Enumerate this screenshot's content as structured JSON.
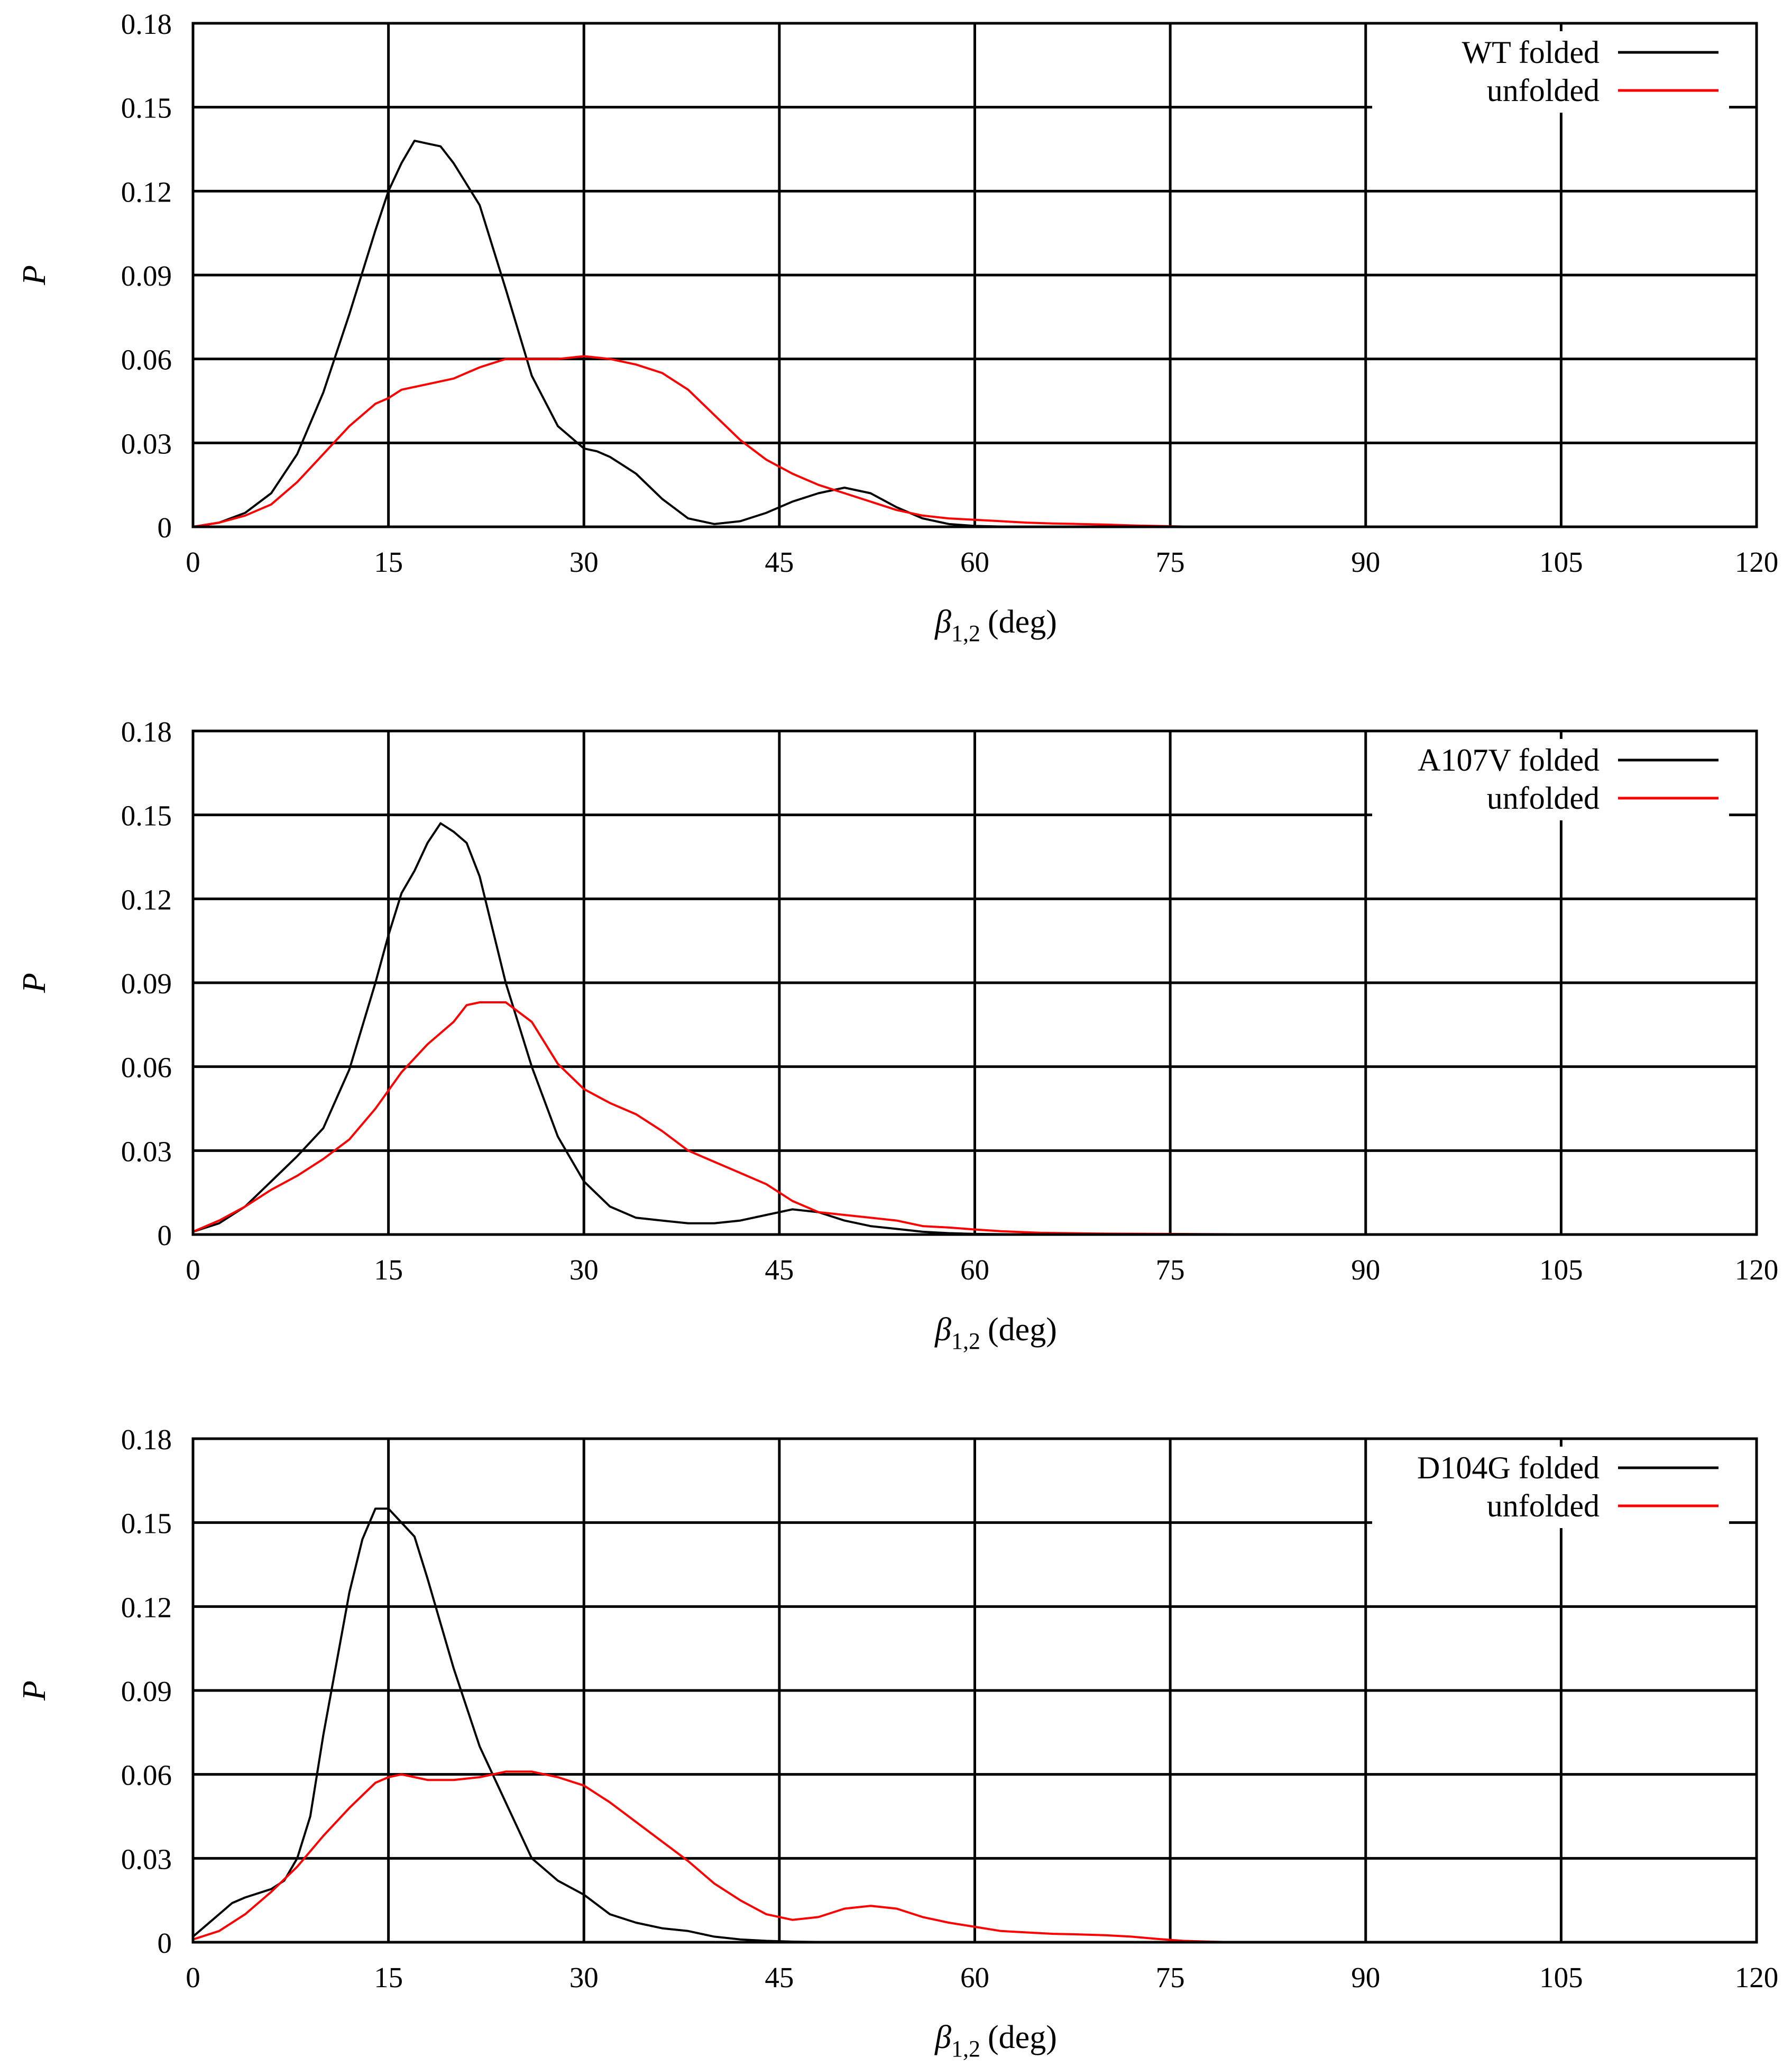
{
  "chart_data": [
    {
      "type": "line",
      "title": "",
      "xlabel_symbol": "β",
      "xlabel_subscript": "1,2",
      "xlabel_unit": "(deg)",
      "ylabel": "P",
      "xlim": [
        0,
        120
      ],
      "ylim": [
        0,
        0.18
      ],
      "xticks": [
        "0",
        "15",
        "30",
        "45",
        "60",
        "75",
        "90",
        "105",
        "120"
      ],
      "yticks": [
        "0",
        "0.03",
        "0.06",
        "0.09",
        "0.12",
        "0.15",
        "0.18"
      ],
      "grid": true,
      "legend_position": "top-right",
      "series": [
        {
          "name": "WT folded",
          "color": "#000000",
          "x": [
            0,
            2,
            4,
            6,
            8,
            10,
            12,
            14,
            15,
            16,
            17,
            18,
            19,
            20,
            22,
            24,
            26,
            28,
            30,
            31,
            32,
            33,
            34,
            36,
            38,
            40,
            42,
            44,
            46,
            48,
            50,
            52,
            54,
            56,
            58,
            60,
            62,
            65
          ],
          "y": [
            0,
            0.0015,
            0.005,
            0.012,
            0.026,
            0.048,
            0.076,
            0.106,
            0.12,
            0.13,
            0.138,
            0.137,
            0.136,
            0.13,
            0.115,
            0.085,
            0.054,
            0.036,
            0.028,
            0.027,
            0.025,
            0.022,
            0.019,
            0.01,
            0.003,
            0.001,
            0.002,
            0.005,
            0.009,
            0.012,
            0.014,
            0.012,
            0.007,
            0.003,
            0.001,
            0.0003,
            0.0001,
            0
          ]
        },
        {
          "name": "unfolded",
          "color": "#ff0000",
          "x": [
            0,
            2,
            4,
            6,
            8,
            10,
            12,
            14,
            15,
            16,
            18,
            20,
            22,
            24,
            26,
            28,
            30,
            32,
            34,
            36,
            38,
            40,
            42,
            44,
            46,
            48,
            50,
            52,
            54,
            56,
            58,
            60,
            62,
            64,
            66,
            68,
            70,
            72,
            74,
            76,
            80,
            85,
            90,
            100,
            110,
            120
          ],
          "y": [
            0,
            0.0015,
            0.004,
            0.008,
            0.016,
            0.026,
            0.036,
            0.044,
            0.046,
            0.049,
            0.051,
            0.053,
            0.057,
            0.06,
            0.06,
            0.06,
            0.061,
            0.06,
            0.058,
            0.055,
            0.049,
            0.04,
            0.031,
            0.024,
            0.019,
            0.015,
            0.012,
            0.009,
            0.006,
            0.004,
            0.003,
            0.0025,
            0.002,
            0.0015,
            0.0012,
            0.001,
            0.0008,
            0.0005,
            0.0003,
            0.0001,
            5e-05,
            0,
            0,
            0,
            0,
            0
          ]
        }
      ]
    },
    {
      "type": "line",
      "title": "",
      "xlabel_symbol": "β",
      "xlabel_subscript": "1,2",
      "xlabel_unit": "(deg)",
      "ylabel": "P",
      "xlim": [
        0,
        120
      ],
      "ylim": [
        0,
        0.18
      ],
      "xticks": [
        "0",
        "15",
        "30",
        "45",
        "60",
        "75",
        "90",
        "105",
        "120"
      ],
      "yticks": [
        "0",
        "0.03",
        "0.06",
        "0.09",
        "0.12",
        "0.15",
        "0.18"
      ],
      "grid": true,
      "legend_position": "top-right",
      "series": [
        {
          "name": "A107V folded",
          "color": "#000000",
          "x": [
            0,
            2,
            4,
            6,
            8,
            10,
            12,
            14,
            15,
            16,
            17,
            18,
            19,
            20,
            21,
            22,
            24,
            26,
            28,
            30,
            32,
            34,
            36,
            38,
            40,
            42,
            44,
            46,
            48,
            50,
            52,
            54,
            56,
            58,
            60,
            65
          ],
          "y": [
            0.001,
            0.004,
            0.01,
            0.019,
            0.028,
            0.038,
            0.059,
            0.09,
            0.107,
            0.122,
            0.13,
            0.14,
            0.147,
            0.144,
            0.14,
            0.128,
            0.09,
            0.06,
            0.035,
            0.019,
            0.01,
            0.006,
            0.005,
            0.004,
            0.004,
            0.005,
            0.007,
            0.009,
            0.008,
            0.005,
            0.003,
            0.002,
            0.001,
            0.0005,
            0.0002,
            0
          ]
        },
        {
          "name": "unfolded",
          "color": "#ff0000",
          "x": [
            0,
            2,
            4,
            6,
            8,
            10,
            12,
            14,
            16,
            18,
            20,
            21,
            22,
            24,
            26,
            28,
            30,
            32,
            34,
            36,
            38,
            40,
            42,
            44,
            46,
            48,
            50,
            52,
            54,
            56,
            58,
            60,
            62,
            65,
            70,
            75,
            80,
            90,
            100,
            110,
            120
          ],
          "y": [
            0.001,
            0.005,
            0.01,
            0.016,
            0.021,
            0.027,
            0.034,
            0.045,
            0.058,
            0.068,
            0.076,
            0.082,
            0.083,
            0.083,
            0.076,
            0.061,
            0.052,
            0.047,
            0.043,
            0.037,
            0.03,
            0.026,
            0.022,
            0.018,
            0.012,
            0.008,
            0.007,
            0.006,
            0.005,
            0.003,
            0.0025,
            0.0018,
            0.0012,
            0.0006,
            0.0003,
            0.0002,
            0.0001,
            0,
            0,
            0,
            0
          ]
        }
      ]
    },
    {
      "type": "line",
      "title": "",
      "xlabel_symbol": "β",
      "xlabel_subscript": "1,2",
      "xlabel_unit": "(deg)",
      "ylabel": "P",
      "xlim": [
        0,
        120
      ],
      "ylim": [
        0,
        0.18
      ],
      "xticks": [
        "0",
        "15",
        "30",
        "45",
        "60",
        "75",
        "90",
        "105",
        "120"
      ],
      "yticks": [
        "0",
        "0.03",
        "0.06",
        "0.09",
        "0.12",
        "0.15",
        "0.18"
      ],
      "grid": true,
      "legend_position": "top-right",
      "series": [
        {
          "name": "D104G folded",
          "color": "#000000",
          "x": [
            0,
            1,
            2,
            3,
            4,
            6,
            7,
            8,
            9,
            10,
            12,
            13,
            14,
            15,
            16,
            17,
            18,
            20,
            22,
            24,
            26,
            28,
            30,
            32,
            34,
            36,
            38,
            40,
            42,
            44,
            46,
            48,
            50,
            52
          ],
          "y": [
            0.002,
            0.006,
            0.01,
            0.014,
            0.016,
            0.019,
            0.022,
            0.03,
            0.045,
            0.074,
            0.125,
            0.144,
            0.155,
            0.155,
            0.15,
            0.145,
            0.13,
            0.098,
            0.07,
            0.05,
            0.03,
            0.022,
            0.017,
            0.01,
            0.007,
            0.005,
            0.004,
            0.002,
            0.001,
            0.0005,
            0.0002,
            0.0001,
            0,
            0
          ]
        },
        {
          "name": "unfolded",
          "color": "#ff0000",
          "x": [
            0,
            2,
            4,
            6,
            8,
            10,
            12,
            14,
            15,
            16,
            18,
            20,
            22,
            24,
            26,
            28,
            30,
            32,
            34,
            36,
            38,
            40,
            42,
            44,
            46,
            48,
            50,
            52,
            54,
            56,
            58,
            60,
            62,
            64,
            66,
            68,
            70,
            72,
            74,
            76,
            78,
            80
          ],
          "y": [
            0.001,
            0.004,
            0.01,
            0.018,
            0.027,
            0.038,
            0.048,
            0.057,
            0.059,
            0.06,
            0.058,
            0.058,
            0.059,
            0.061,
            0.061,
            0.059,
            0.056,
            0.05,
            0.043,
            0.036,
            0.029,
            0.021,
            0.015,
            0.01,
            0.008,
            0.009,
            0.012,
            0.013,
            0.012,
            0.009,
            0.007,
            0.0055,
            0.004,
            0.0035,
            0.003,
            0.0028,
            0.0025,
            0.002,
            0.0012,
            0.0005,
            0.0002,
            0
          ]
        }
      ]
    }
  ]
}
